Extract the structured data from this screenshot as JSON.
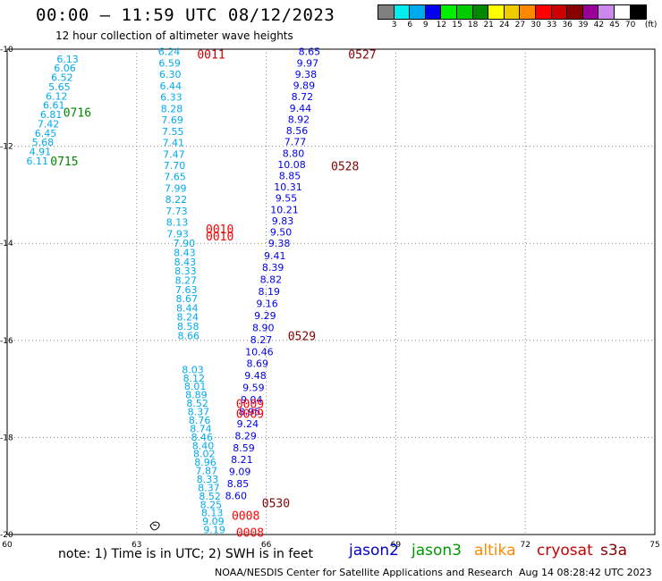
{
  "header": {
    "title": "00:00 – 11:59 UTC 08/12/2023",
    "subtitle": "12 hour collection of altimeter wave heights"
  },
  "colorbar": {
    "unit": "(ft)",
    "colors": [
      "#808080",
      "#00eeee",
      "#00aaee",
      "#0000ee",
      "#00ee00",
      "#00cc00",
      "#008800",
      "#ffff00",
      "#eecc00",
      "#ff8800",
      "#ff0000",
      "#cc0000",
      "#880000",
      "#990099",
      "#cc88ee",
      "#ffffff",
      "#000000"
    ],
    "labels": [
      "3",
      "6",
      "9",
      "12",
      "15",
      "18",
      "21",
      "24",
      "27",
      "30",
      "33",
      "36",
      "39",
      "42",
      "45",
      "70"
    ]
  },
  "map": {
    "x_ticks": [
      "60",
      "63",
      "66",
      "69",
      "72",
      "75"
    ],
    "y_ticks": [
      "-10",
      "-12",
      "-14",
      "-16",
      "-18",
      "-20"
    ],
    "x_range": [
      60,
      75
    ],
    "y_range": [
      -20,
      -10
    ]
  },
  "time_labels": [
    {
      "text": "0011",
      "lon": 64.4,
      "lat": -10.1,
      "color": "#cc0000"
    },
    {
      "text": "0527",
      "lon": 67.9,
      "lat": -10.1,
      "color": "#880000"
    },
    {
      "text": "0716",
      "lon": 61.3,
      "lat": -11.3,
      "color": "#008800"
    },
    {
      "text": "0715",
      "lon": 61.0,
      "lat": -12.3,
      "color": "#008800"
    },
    {
      "text": "0528",
      "lon": 67.5,
      "lat": -12.4,
      "color": "#880000"
    },
    {
      "text": "0010",
      "lon": 64.6,
      "lat": -13.7,
      "color": "#ff0000"
    },
    {
      "text": "0010",
      "lon": 64.6,
      "lat": -13.85,
      "color": "#ff0000"
    },
    {
      "text": "0529",
      "lon": 66.5,
      "lat": -15.9,
      "color": "#880000"
    },
    {
      "text": "0009",
      "lon": 65.3,
      "lat": -17.3,
      "color": "#ff0000"
    },
    {
      "text": "0009",
      "lon": 65.3,
      "lat": -17.5,
      "color": "#ff0000"
    },
    {
      "text": "0530",
      "lon": 65.9,
      "lat": -19.35,
      "color": "#880000"
    },
    {
      "text": "0008",
      "lon": 65.2,
      "lat": -19.6,
      "color": "#ff0000"
    },
    {
      "text": "0008",
      "lon": 65.3,
      "lat": -19.95,
      "color": "#ff0000"
    }
  ],
  "tracks": [
    {
      "name": "jason3-west",
      "color": "#00aaee",
      "lon0": 61.4,
      "lat0": -10.2,
      "lon1": 60.7,
      "lat1": -12.3,
      "values": [
        "6.13",
        "6.06",
        "6.52",
        "5.65",
        "6.12",
        "6.61",
        "6.81",
        "7.42",
        "6.45",
        "5.68",
        "4.91",
        "6.11"
      ]
    },
    {
      "name": "cryosat-center",
      "color": "#00aaee",
      "lon0": 63.75,
      "lat0": -10.05,
      "lon1": 63.95,
      "lat1": -13.8,
      "values": [
        "6.24",
        "6.59",
        "6.30",
        "6.44",
        "6.33",
        "8.28",
        "7.69",
        "7.55",
        "7.41",
        "7.47",
        "7.70",
        "7.65",
        "7.99",
        "8.22",
        "7.73",
        "8.13",
        "7.93"
      ]
    },
    {
      "name": "cryosat-south",
      "color": "#00aaee",
      "lon0": 64.1,
      "lat0": -14.0,
      "lon1": 64.2,
      "lat1": -15.9,
      "values": [
        "7.90",
        "8.43",
        "8.43",
        "8.33",
        "8.27",
        "7.63",
        "8.67",
        "8.44",
        "8.24",
        "8.58",
        "8.66"
      ]
    },
    {
      "name": "s3a-center",
      "color": "#00aaee",
      "lon0": 64.3,
      "lat0": -16.6,
      "lon1": 64.8,
      "lat1": -19.9,
      "values": [
        "8.03",
        "8.12",
        "8.01",
        "8.89",
        "8.52",
        "8.37",
        "8.76",
        "8.74",
        "8.46",
        "8.40",
        "8.02",
        "8.96",
        "7.87",
        "8.33",
        "8.37",
        "8.52",
        "8.25",
        "8.13",
        "9.09",
        "9.19"
      ]
    },
    {
      "name": "altika-north",
      "color": "#0000ee",
      "lon0": 67.0,
      "lat0": -10.05,
      "lon1": 66.3,
      "lat1": -14.0,
      "values": [
        "8.65",
        "9.97",
        "9.38",
        "9.89",
        "8.72",
        "9.44",
        "8.92",
        "8.56",
        "7.77",
        "8.80",
        "10.08",
        "8.85",
        "10.31",
        "9.55",
        "10.21",
        "9.83",
        "9.50",
        "9.38"
      ]
    },
    {
      "name": "altika-south",
      "color": "#0000ee",
      "lon0": 66.2,
      "lat0": -14.25,
      "lon1": 65.3,
      "lat1": -19.2,
      "values": [
        "9.41",
        "8.39",
        "8.82",
        "8.19",
        "9.16",
        "9.29",
        "8.90",
        "8.27",
        "10.46",
        "8.69",
        "9.48",
        "9.59",
        "9.04",
        "8.95",
        "9.24",
        "8.29",
        "8.59",
        "8.21",
        "9.09",
        "8.85",
        "8.60"
      ]
    }
  ],
  "footer": {
    "note": "note:  1) Time is in UTC;  2) SWH is in feet",
    "credit": "NOAA/NESDIS Center for Satellite Applications and Research",
    "timestamp": "Aug 14 08:28:42 UTC 2023",
    "satellites": [
      {
        "name": "jason2",
        "color": "#0000cc"
      },
      {
        "name": "jason3",
        "color": "#009900"
      },
      {
        "name": "altika",
        "color": "#ff8800"
      },
      {
        "name": "cryosat",
        "color": "#cc0000"
      },
      {
        "name": "s3a",
        "color": "#880000"
      }
    ]
  }
}
